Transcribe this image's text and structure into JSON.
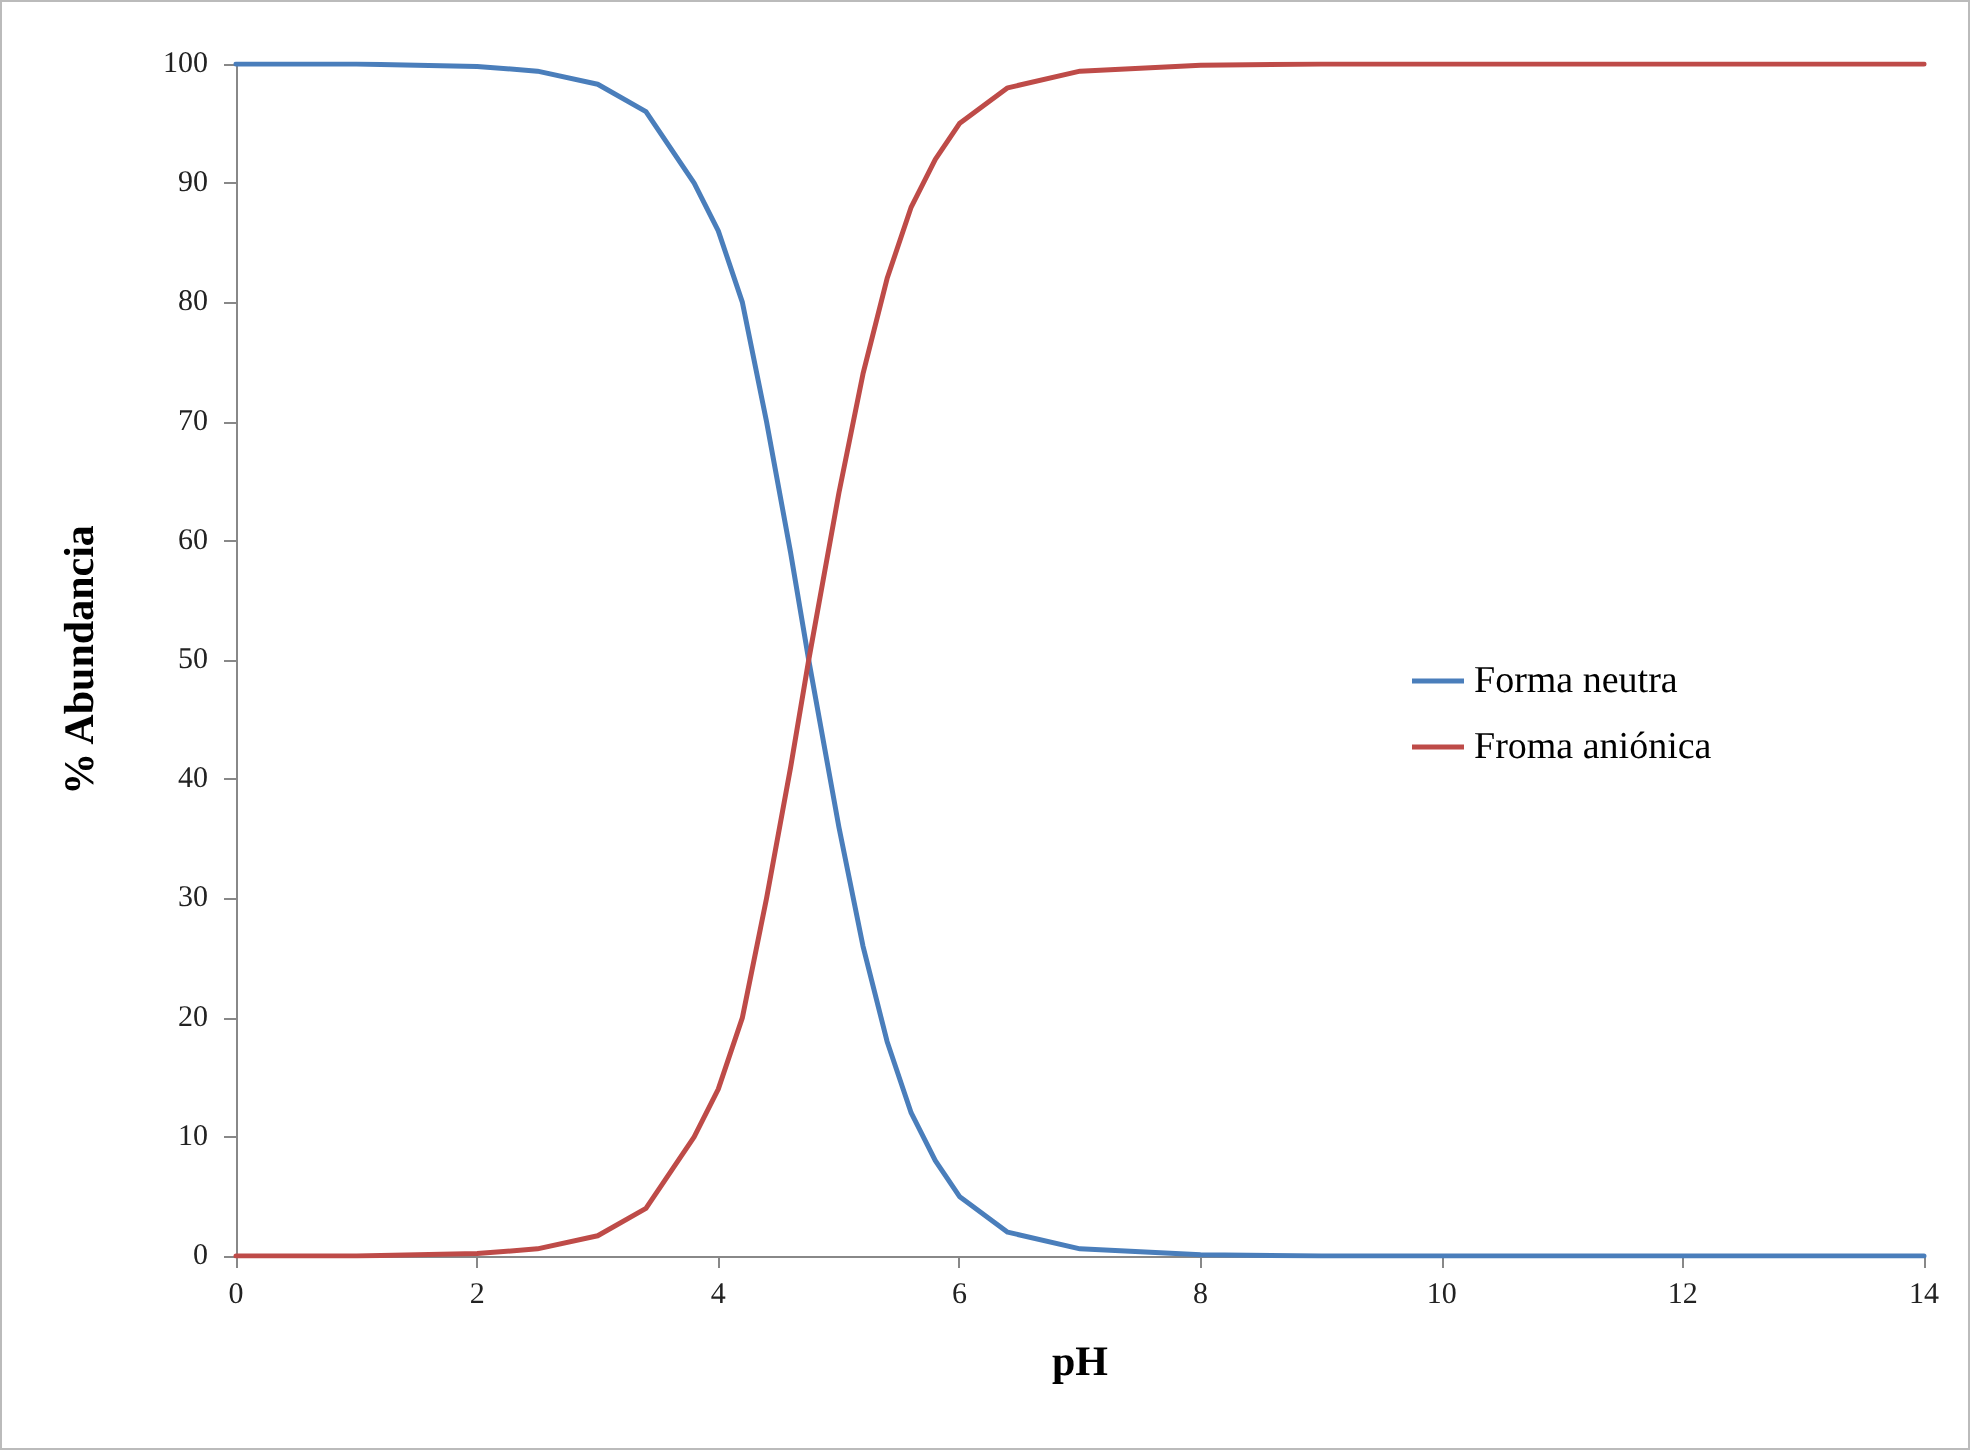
{
  "chart_data": {
    "type": "line",
    "xlabel": "pH",
    "ylabel": "% Abundancia",
    "x": [
      0,
      1,
      2,
      2.5,
      3,
      3.4,
      3.8,
      4,
      4.2,
      4.4,
      4.6,
      4.75,
      5,
      5.2,
      5.4,
      5.6,
      5.8,
      6,
      6.4,
      7,
      8,
      9,
      10,
      12,
      14
    ],
    "series": [
      {
        "name": "Forma neutra",
        "color": "#4a7ebb",
        "values": [
          100,
          100,
          99.8,
          99.4,
          98.3,
          96,
          90,
          86,
          80,
          70,
          59,
          50,
          36,
          26,
          18,
          12,
          8,
          5,
          2,
          0.6,
          0.1,
          0,
          0,
          0,
          0
        ]
      },
      {
        "name": "Froma aniónica",
        "color": "#be4b48",
        "values": [
          0,
          0,
          0.2,
          0.6,
          1.7,
          4,
          10,
          14,
          20,
          30,
          41,
          50,
          64,
          74,
          82,
          88,
          92,
          95,
          98,
          99.4,
          99.9,
          100,
          100,
          100,
          100
        ]
      }
    ],
    "xlim": [
      0,
      14
    ],
    "xticks": [
      0,
      2,
      4,
      6,
      8,
      10,
      12,
      14
    ],
    "ylim": [
      0,
      100
    ],
    "yticks": [
      0,
      10,
      20,
      30,
      40,
      50,
      60,
      70,
      80,
      90,
      100
    ],
    "grid": false,
    "legend": "right",
    "marker": "none",
    "line_style": "solid"
  }
}
